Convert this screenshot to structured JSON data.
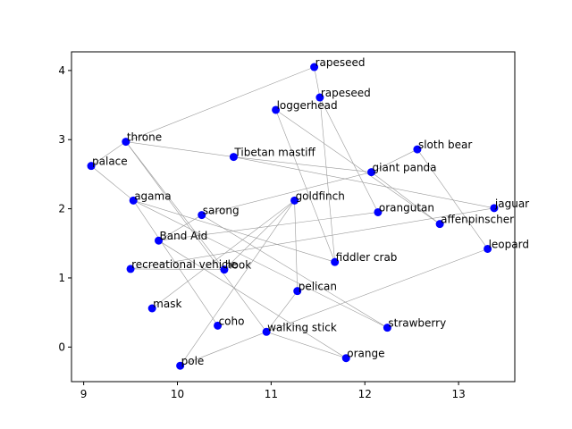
{
  "chart_data": {
    "type": "scatter",
    "title": "",
    "xlabel": "",
    "ylabel": "",
    "xlim": [
      8.87,
      13.6
    ],
    "ylim": [
      -0.5,
      4.27
    ],
    "xticks": [
      9,
      10,
      11,
      12,
      13
    ],
    "yticks": [
      0,
      1,
      2,
      3,
      4
    ],
    "grid": false,
    "marker_color": "#0000ff",
    "edge_color": "#9a9a9a",
    "points": [
      {
        "label": "rapeseed",
        "x": 11.46,
        "y": 4.05
      },
      {
        "label": "rapeseed",
        "x": 11.52,
        "y": 3.61
      },
      {
        "label": "loggerhead",
        "x": 11.05,
        "y": 3.43
      },
      {
        "label": "throne",
        "x": 9.45,
        "y": 2.97
      },
      {
        "label": "sloth bear",
        "x": 12.56,
        "y": 2.86
      },
      {
        "label": "Tibetan mastiff",
        "x": 10.6,
        "y": 2.75
      },
      {
        "label": "palace",
        "x": 9.08,
        "y": 2.62
      },
      {
        "label": "giant panda",
        "x": 12.07,
        "y": 2.53
      },
      {
        "label": "agama",
        "x": 9.53,
        "y": 2.12
      },
      {
        "label": "goldfinch",
        "x": 11.25,
        "y": 2.12
      },
      {
        "label": "jaguar",
        "x": 13.38,
        "y": 2.01
      },
      {
        "label": "orangutan",
        "x": 12.14,
        "y": 1.95
      },
      {
        "label": "sarong",
        "x": 10.26,
        "y": 1.91
      },
      {
        "label": "affenpinscher",
        "x": 12.8,
        "y": 1.78
      },
      {
        "label": "Band Aid",
        "x": 9.8,
        "y": 1.54
      },
      {
        "label": "leopard",
        "x": 13.31,
        "y": 1.42
      },
      {
        "label": "fiddler crab",
        "x": 11.68,
        "y": 1.23
      },
      {
        "label": "recreational vehicle",
        "x": 9.5,
        "y": 1.13
      },
      {
        "label": "hook",
        "x": 10.5,
        "y": 1.12
      },
      {
        "label": "pelican",
        "x": 11.28,
        "y": 0.81
      },
      {
        "label": "mask",
        "x": 9.73,
        "y": 0.56
      },
      {
        "label": "coho",
        "x": 10.43,
        "y": 0.31
      },
      {
        "label": "strawberry",
        "x": 12.24,
        "y": 0.28
      },
      {
        "label": "walking stick",
        "x": 10.95,
        "y": 0.22
      },
      {
        "label": "orange",
        "x": 11.8,
        "y": -0.16
      },
      {
        "label": "pole",
        "x": 10.03,
        "y": -0.27
      }
    ],
    "edges": [
      [
        0,
        3
      ],
      [
        0,
        1
      ],
      [
        1,
        16
      ],
      [
        1,
        11
      ],
      [
        2,
        16
      ],
      [
        2,
        13
      ],
      [
        3,
        5
      ],
      [
        3,
        18
      ],
      [
        3,
        23
      ],
      [
        4,
        7
      ],
      [
        4,
        15
      ],
      [
        5,
        10
      ],
      [
        5,
        7
      ],
      [
        6,
        8
      ],
      [
        6,
        3
      ],
      [
        7,
        12
      ],
      [
        8,
        22
      ],
      [
        8,
        21
      ],
      [
        8,
        16
      ],
      [
        9,
        19
      ],
      [
        9,
        25
      ],
      [
        9,
        20
      ],
      [
        10,
        17
      ],
      [
        12,
        14
      ],
      [
        13,
        7
      ],
      [
        14,
        24
      ],
      [
        14,
        11
      ],
      [
        15,
        23
      ],
      [
        17,
        18
      ],
      [
        18,
        9
      ],
      [
        19,
        23
      ],
      [
        23,
        24
      ],
      [
        23,
        25
      ],
      [
        12,
        22
      ]
    ]
  }
}
